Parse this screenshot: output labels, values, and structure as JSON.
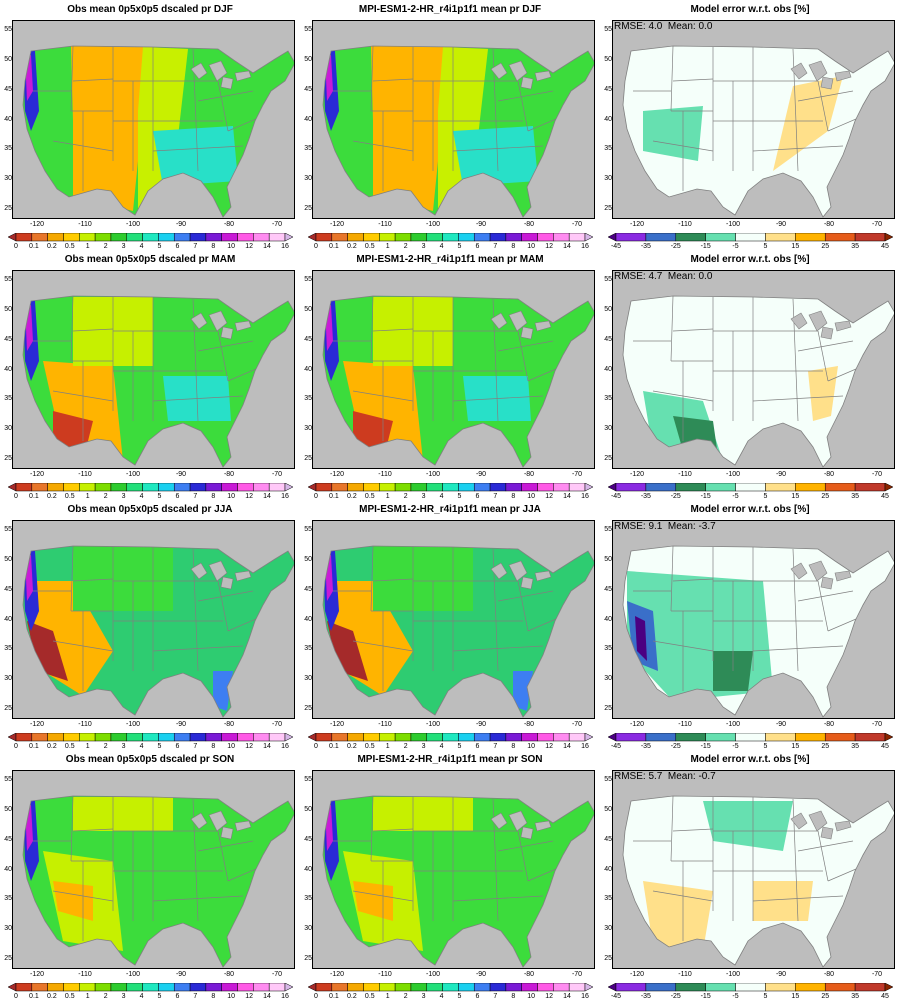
{
  "panels": [
    {
      "title": "Obs mean 0p5x0p5 dscaled pr DJF",
      "kind": "obs",
      "season": "DJF"
    },
    {
      "title": "MPI-ESM1-2-HR_r4i1p1f1 mean pr DJF",
      "kind": "model",
      "season": "DJF"
    },
    {
      "title": "Model error w.r.t. obs [%]",
      "kind": "error",
      "season": "DJF",
      "stats": "RMSE: 4.0  Mean: 0.0"
    },
    {
      "title": "Obs mean 0p5x0p5 dscaled pr MAM",
      "kind": "obs",
      "season": "MAM"
    },
    {
      "title": "MPI-ESM1-2-HR_r4i1p1f1 mean pr MAM",
      "kind": "model",
      "season": "MAM"
    },
    {
      "title": "Model error w.r.t. obs [%]",
      "kind": "error",
      "season": "MAM",
      "stats": "RMSE: 4.7  Mean: 0.0"
    },
    {
      "title": "Obs mean 0p5x0p5 dscaled pr JJA",
      "kind": "obs",
      "season": "JJA"
    },
    {
      "title": "MPI-ESM1-2-HR_r4i1p1f1 mean pr JJA",
      "kind": "model",
      "season": "JJA"
    },
    {
      "title": "Model error w.r.t. obs [%]",
      "kind": "error",
      "season": "JJA",
      "stats": "RMSE: 9.1  Mean: -3.7"
    },
    {
      "title": "Obs mean 0p5x0p5 dscaled pr SON",
      "kind": "obs",
      "season": "SON"
    },
    {
      "title": "MPI-ESM1-2-HR_r4i1p1f1 mean pr SON",
      "kind": "model",
      "season": "SON"
    },
    {
      "title": "Model error w.r.t. obs [%]",
      "kind": "error",
      "season": "SON",
      "stats": "RMSE: 5.7  Mean: -0.7"
    }
  ],
  "axes": {
    "lat_ticks": [
      "25",
      "30",
      "35",
      "40",
      "45",
      "50",
      "55"
    ],
    "lon_ticks": [
      "-120",
      "-110",
      "-100",
      "-90",
      "-80",
      "-70"
    ]
  },
  "colorbars": {
    "precip": {
      "labels": [
        "0",
        "0.1",
        "0.2",
        "0.5",
        "1",
        "2",
        "3",
        "4",
        "5",
        "6",
        "7",
        "8",
        "10",
        "12",
        "14",
        "16"
      ],
      "colors": [
        "#a52a2a",
        "#cd3b1f",
        "#e8762a",
        "#f5a800",
        "#ffcc00",
        "#c6f000",
        "#7ddd00",
        "#2ecc2e",
        "#22e07a",
        "#1fe8c0",
        "#1ad0f0",
        "#3d7ef2",
        "#2a2ad6",
        "#7a1ad6",
        "#c81ad6",
        "#ff59e6",
        "#ff8cf0",
        "#ffc8f8",
        "#d8b8e8"
      ]
    },
    "error": {
      "labels": [
        "-45",
        "-35",
        "-25",
        "-15",
        "-5",
        "5",
        "15",
        "25",
        "35",
        "45"
      ],
      "colors": [
        "#4b0082",
        "#8a2be2",
        "#3a6fc9",
        "#2e8b57",
        "#66e0b0",
        "#f5fffa",
        "#ffe08a",
        "#ffb300",
        "#e65c1a",
        "#c0392b",
        "#8b2500"
      ]
    }
  },
  "map_colors": {
    "ocean": "#bdbdbd",
    "lines": "#808080",
    "djf_west": "#ffb400",
    "djf_mid": "#c8f000",
    "djf_east": "#3cdc3c",
    "djf_se": "#28e0c8",
    "mam_base": "#3cdc3c",
    "mam_se": "#28e0c8",
    "jja_base": "#2ecc71",
    "son_base": "#3cdc3c",
    "err_base": "#f5fffa",
    "err_pos": "#ffe08a",
    "err_neg": "#66e0b0"
  }
}
